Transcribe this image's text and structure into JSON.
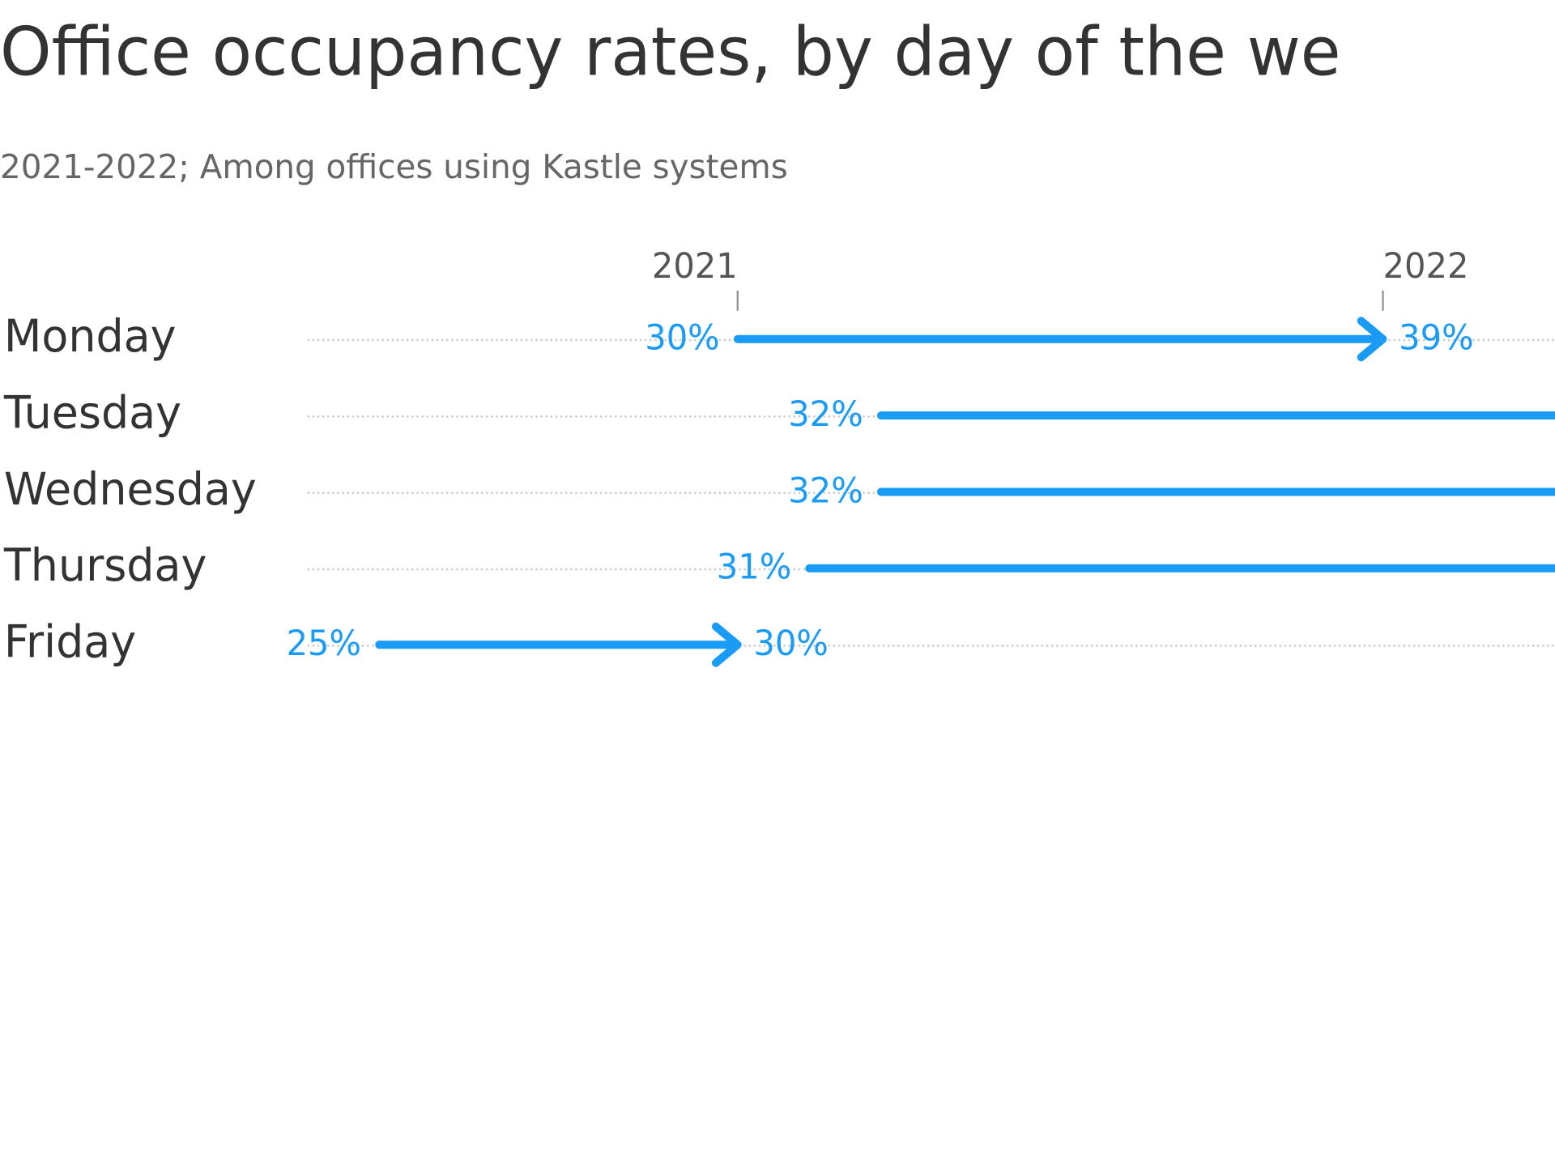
{
  "chart_data": {
    "type": "arrow",
    "title": "Office occupancy rates, by day of the we",
    "subtitle": "2021-2022; Among offices using Kastle systems",
    "categories": [
      "Monday",
      "Tuesday",
      "Wednesday",
      "Thursday",
      "Friday"
    ],
    "series": [
      {
        "name": "2021",
        "values": [
          30,
          32,
          32,
          31,
          25
        ],
        "value_labels": [
          "30%",
          "32%",
          "32%",
          "31%",
          "25%"
        ]
      },
      {
        "name": "2022",
        "values": [
          39,
          null,
          null,
          null,
          30
        ],
        "value_labels": [
          "39%",
          null,
          null,
          null,
          "30%"
        ]
      }
    ],
    "color": "#1a9bf5",
    "xlim": [
      24,
      41.4
    ],
    "grid": true
  }
}
